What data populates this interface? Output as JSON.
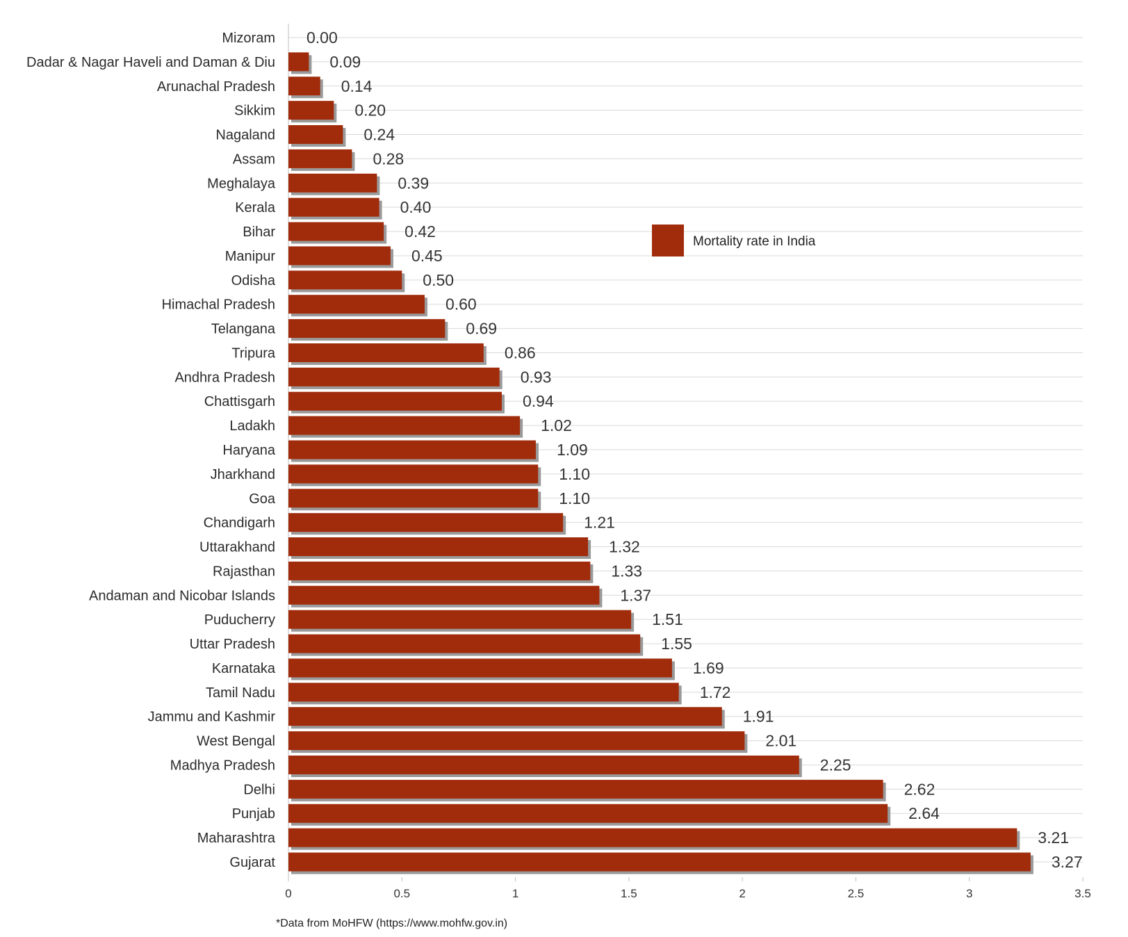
{
  "chart_data": {
    "type": "bar",
    "orientation": "horizontal",
    "categories": [
      "Mizoram",
      "Dadar & Nagar Haveli and Daman & Diu",
      "Arunachal Pradesh",
      "Sikkim",
      "Nagaland",
      "Assam",
      "Meghalaya",
      "Kerala",
      "Bihar",
      "Manipur",
      "Odisha",
      "Himachal Pradesh",
      "Telangana",
      "Tripura",
      "Andhra Pradesh",
      "Chattisgarh",
      "Ladakh",
      "Haryana",
      "Jharkhand",
      "Goa",
      "Chandigarh",
      "Uttarakhand",
      "Rajasthan",
      "Andaman and Nicobar Islands",
      "Puducherry",
      "Uttar Pradesh",
      "Karnataka",
      "Tamil Nadu",
      "Jammu and Kashmir",
      "West Bengal",
      "Madhya Pradesh",
      "Delhi",
      "Punjab",
      "Maharashtra",
      "Gujarat"
    ],
    "series": [
      {
        "name": "Mortality rate in India",
        "values": [
          0.0,
          0.09,
          0.14,
          0.2,
          0.24,
          0.28,
          0.39,
          0.4,
          0.42,
          0.45,
          0.5,
          0.6,
          0.69,
          0.86,
          0.93,
          0.94,
          1.02,
          1.09,
          1.1,
          1.1,
          1.21,
          1.32,
          1.33,
          1.37,
          1.51,
          1.55,
          1.69,
          1.72,
          1.91,
          2.01,
          2.25,
          2.62,
          2.64,
          3.21,
          3.27
        ],
        "labels": [
          "0.00",
          "0.09",
          "0.14",
          "0.20",
          "0.24",
          "0.28",
          "0.39",
          "0.40",
          "0.42",
          "0.45",
          "0.50",
          "0.60",
          "0.69",
          "0.86",
          "0.93",
          "0.94",
          "1.02",
          "1.09",
          "1.10",
          "1.10",
          "1.21",
          "1.32",
          "1.33",
          "1.37",
          "1.51",
          "1.55",
          "1.69",
          "1.72",
          "1.91",
          "2.01",
          "2.25",
          "2.62",
          "2.64",
          "3.21",
          "3.27"
        ]
      }
    ],
    "xlim": [
      0,
      3.5
    ],
    "xticks": [
      0,
      0.5,
      1,
      1.5,
      2,
      2.5,
      3,
      3.5
    ],
    "xtick_labels": [
      "0",
      "0.5",
      "1",
      "1.5",
      "2",
      "2.5",
      "3",
      "3.5"
    ],
    "grid": true,
    "legend_position": "center-right",
    "colors": {
      "bar": "#a12c0c",
      "bar_shadow": "#9a9a9a",
      "grid": "#d9d9d9"
    },
    "title": "",
    "xlabel": "",
    "ylabel": ""
  },
  "footnote": "*Data from MoHFW (https://www.mohfw.gov.in)"
}
